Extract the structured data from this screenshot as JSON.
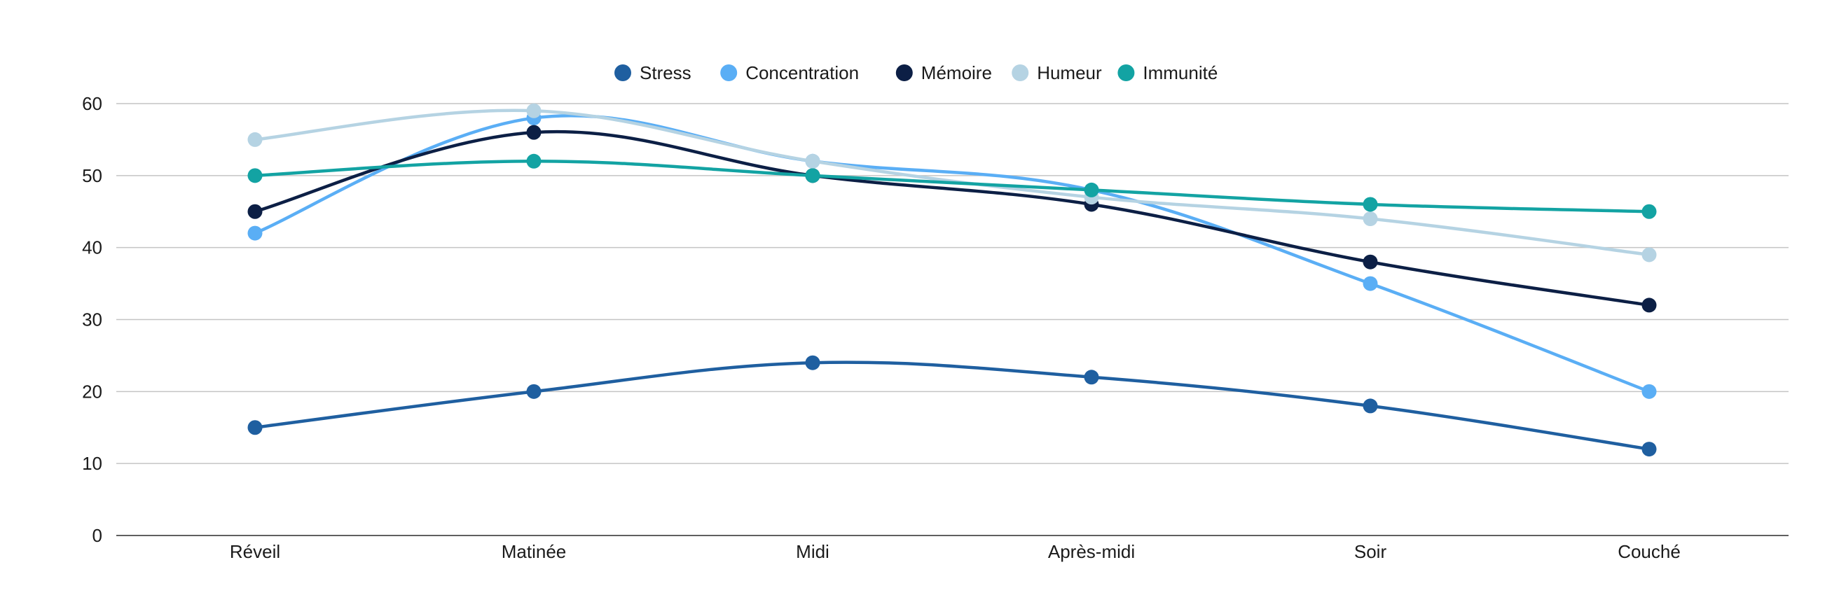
{
  "chart_data": {
    "type": "line",
    "categories": [
      "Réveil",
      "Matinée",
      "Midi",
      "Après-midi",
      "Soir",
      "Couché"
    ],
    "ylim": [
      0,
      60
    ],
    "yticks": [
      0,
      10,
      20,
      30,
      40,
      50,
      60
    ],
    "grid": true,
    "legend_position": "top-center",
    "series": [
      {
        "name": "Stress",
        "color": "#1f5fa0",
        "values": [
          15,
          20,
          24,
          22,
          18,
          12
        ]
      },
      {
        "name": "Concentration",
        "color": "#5aaef5",
        "values": [
          42,
          58,
          52,
          48,
          35,
          20
        ]
      },
      {
        "name": "Mémoire",
        "color": "#0c1f45",
        "values": [
          45,
          56,
          50,
          46,
          38,
          32
        ]
      },
      {
        "name": "Humeur",
        "color": "#b5d3e3",
        "values": [
          55,
          59,
          52,
          47,
          44,
          39
        ]
      },
      {
        "name": "Immunité",
        "color": "#13a3a3",
        "values": [
          50,
          52,
          50,
          48,
          46,
          45
        ]
      }
    ]
  }
}
